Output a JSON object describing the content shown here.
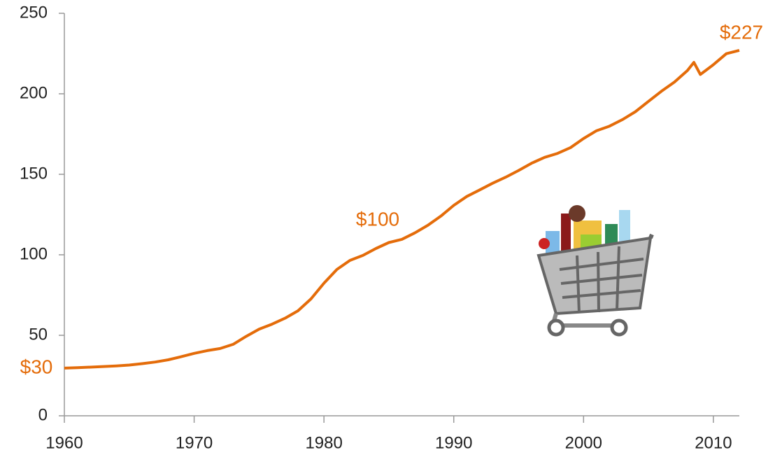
{
  "chart_data": {
    "type": "line",
    "x": [
      1960,
      1961,
      1962,
      1963,
      1964,
      1965,
      1966,
      1967,
      1968,
      1969,
      1970,
      1971,
      1972,
      1973,
      1974,
      1975,
      1976,
      1977,
      1978,
      1979,
      1980,
      1981,
      1982,
      1983,
      1984,
      1985,
      1986,
      1987,
      1988,
      1989,
      1990,
      1991,
      1992,
      1993,
      1994,
      1995,
      1996,
      1997,
      1998,
      1999,
      2000,
      2001,
      2002,
      2003,
      2004,
      2005,
      2006,
      2007,
      2008,
      2008.5,
      2009,
      2010,
      2011,
      2012
    ],
    "series": [
      {
        "color": "#e46c0a",
        "values": [
          29.6,
          29.9,
          30.2,
          30.6,
          31.0,
          31.5,
          32.4,
          33.4,
          34.8,
          36.7,
          38.8,
          40.5,
          41.8,
          44.4,
          49.3,
          53.8,
          56.9,
          60.6,
          65.2,
          72.6,
          82.4,
          90.9,
          96.5,
          99.6,
          103.9,
          107.6,
          109.6,
          113.6,
          118.3,
          124.0,
          130.7,
          136.2,
          140.3,
          144.5,
          148.2,
          152.4,
          156.9,
          160.5,
          163.0,
          166.6,
          172.2,
          177.1,
          179.9,
          184.0,
          188.9,
          195.3,
          201.6,
          207.3,
          214.5,
          219.5,
          212.0,
          218.1,
          224.9,
          227.0
        ]
      }
    ],
    "annotations": [
      "$30",
      "$100",
      "$227"
    ],
    "xlim": [
      1960,
      2012
    ],
    "xticks": [
      1960,
      1970,
      1980,
      1990,
      2000,
      2010
    ],
    "ylim": [
      0,
      250
    ],
    "yticks": [
      0,
      50,
      100,
      150,
      200,
      250
    ],
    "grid": false
  }
}
